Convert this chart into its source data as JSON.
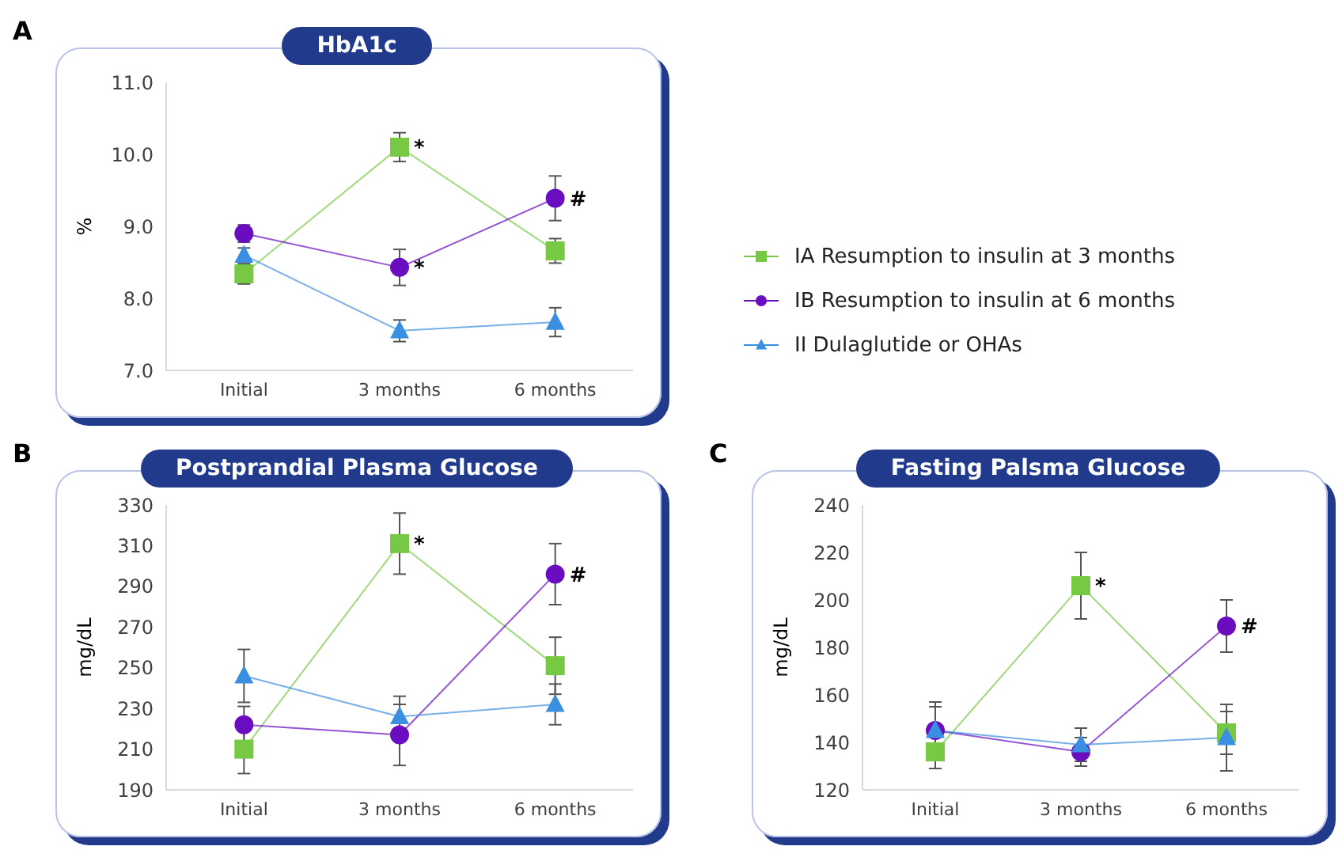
{
  "chart_data": [
    {
      "type": "line",
      "title": "HbA1c",
      "ylabel": "%",
      "categories": [
        "Initial",
        "3 months",
        "6 months"
      ],
      "ylim": [
        7,
        11
      ],
      "yticks": [
        {
          "value": 7,
          "label": "7.0"
        },
        {
          "value": 8,
          "label": "8.0"
        },
        {
          "value": 9,
          "label": "9.0"
        },
        {
          "value": 10,
          "label": "10.0"
        },
        {
          "value": 11,
          "label": "11.0"
        }
      ],
      "grid": false,
      "legend": "right",
      "series": [
        {
          "name": "IA Resumption to insulin at 3 months",
          "color": "#77c843",
          "marker": "square",
          "values": [
            8.34,
            10.1,
            8.66
          ],
          "errors": [
            0.14,
            0.2,
            0.17
          ]
        },
        {
          "name": "IB Resumption to insulin at 6 months",
          "color": "#6a0dc0",
          "marker": "circle",
          "values": [
            8.9,
            8.43,
            9.39
          ],
          "errors": [
            0.12,
            0.25,
            0.31
          ]
        },
        {
          "name": "II Dulaglutide or OHAs",
          "color": "#3b8fe0",
          "marker": "triangle",
          "values": [
            8.6,
            7.55,
            7.67
          ],
          "errors": [
            0.1,
            0.15,
            0.2
          ]
        }
      ],
      "annotations": [
        "A",
        {
          "text": "*",
          "x": "3 months",
          "y": 10.1
        },
        {
          "text": "*",
          "x": "3 months",
          "y": 8.43
        },
        {
          "text": "#",
          "x": "6 months",
          "y": 9.39
        }
      ]
    },
    {
      "type": "line",
      "title": "Postprandial Plasma Glucose",
      "ylabel": "mg/dL",
      "categories": [
        "Initial",
        "3 months",
        "6 months"
      ],
      "ylim": [
        190,
        330
      ],
      "yticks": [
        190,
        210,
        230,
        250,
        270,
        290,
        310,
        330
      ],
      "grid": false,
      "series": [
        {
          "color": "#77c843",
          "marker": "square",
          "values": [
            210,
            311,
            251
          ],
          "errors": [
            12,
            15,
            14
          ]
        },
        {
          "color": "#6a0dc0",
          "marker": "circle",
          "values": [
            222,
            217,
            296
          ],
          "errors": [
            9,
            15,
            15
          ]
        },
        {
          "color": "#3b8fe0",
          "marker": "triangle",
          "values": [
            246,
            226,
            232
          ],
          "errors": [
            13,
            10,
            10
          ]
        }
      ],
      "annotations": [
        "B",
        {
          "text": "*",
          "x": "3 months",
          "y": 311
        },
        {
          "text": "#",
          "x": "6 months",
          "y": 296
        }
      ]
    },
    {
      "type": "line",
      "title": "Fasting Palsma Glucose",
      "ylabel": "mg/dL",
      "categories": [
        "Initial",
        "3 months",
        "6 months"
      ],
      "ylim": [
        120,
        240
      ],
      "yticks": [
        120,
        140,
        160,
        180,
        200,
        220,
        240
      ],
      "grid": false,
      "series": [
        {
          "color": "#77c843",
          "marker": "square",
          "values": [
            136,
            206,
            144
          ],
          "errors": [
            7,
            14,
            9
          ]
        },
        {
          "color": "#6a0dc0",
          "marker": "circle",
          "values": [
            145,
            136,
            189
          ],
          "errors": [
            12,
            6,
            11
          ]
        },
        {
          "color": "#3b8fe0",
          "marker": "triangle",
          "values": [
            145,
            139,
            142
          ],
          "errors": [
            10,
            7,
            14
          ]
        }
      ],
      "annotations": [
        "C",
        {
          "text": "*",
          "x": "3 months",
          "y": 206
        },
        {
          "text": "#",
          "x": "6 months",
          "y": 189
        }
      ]
    }
  ]
}
